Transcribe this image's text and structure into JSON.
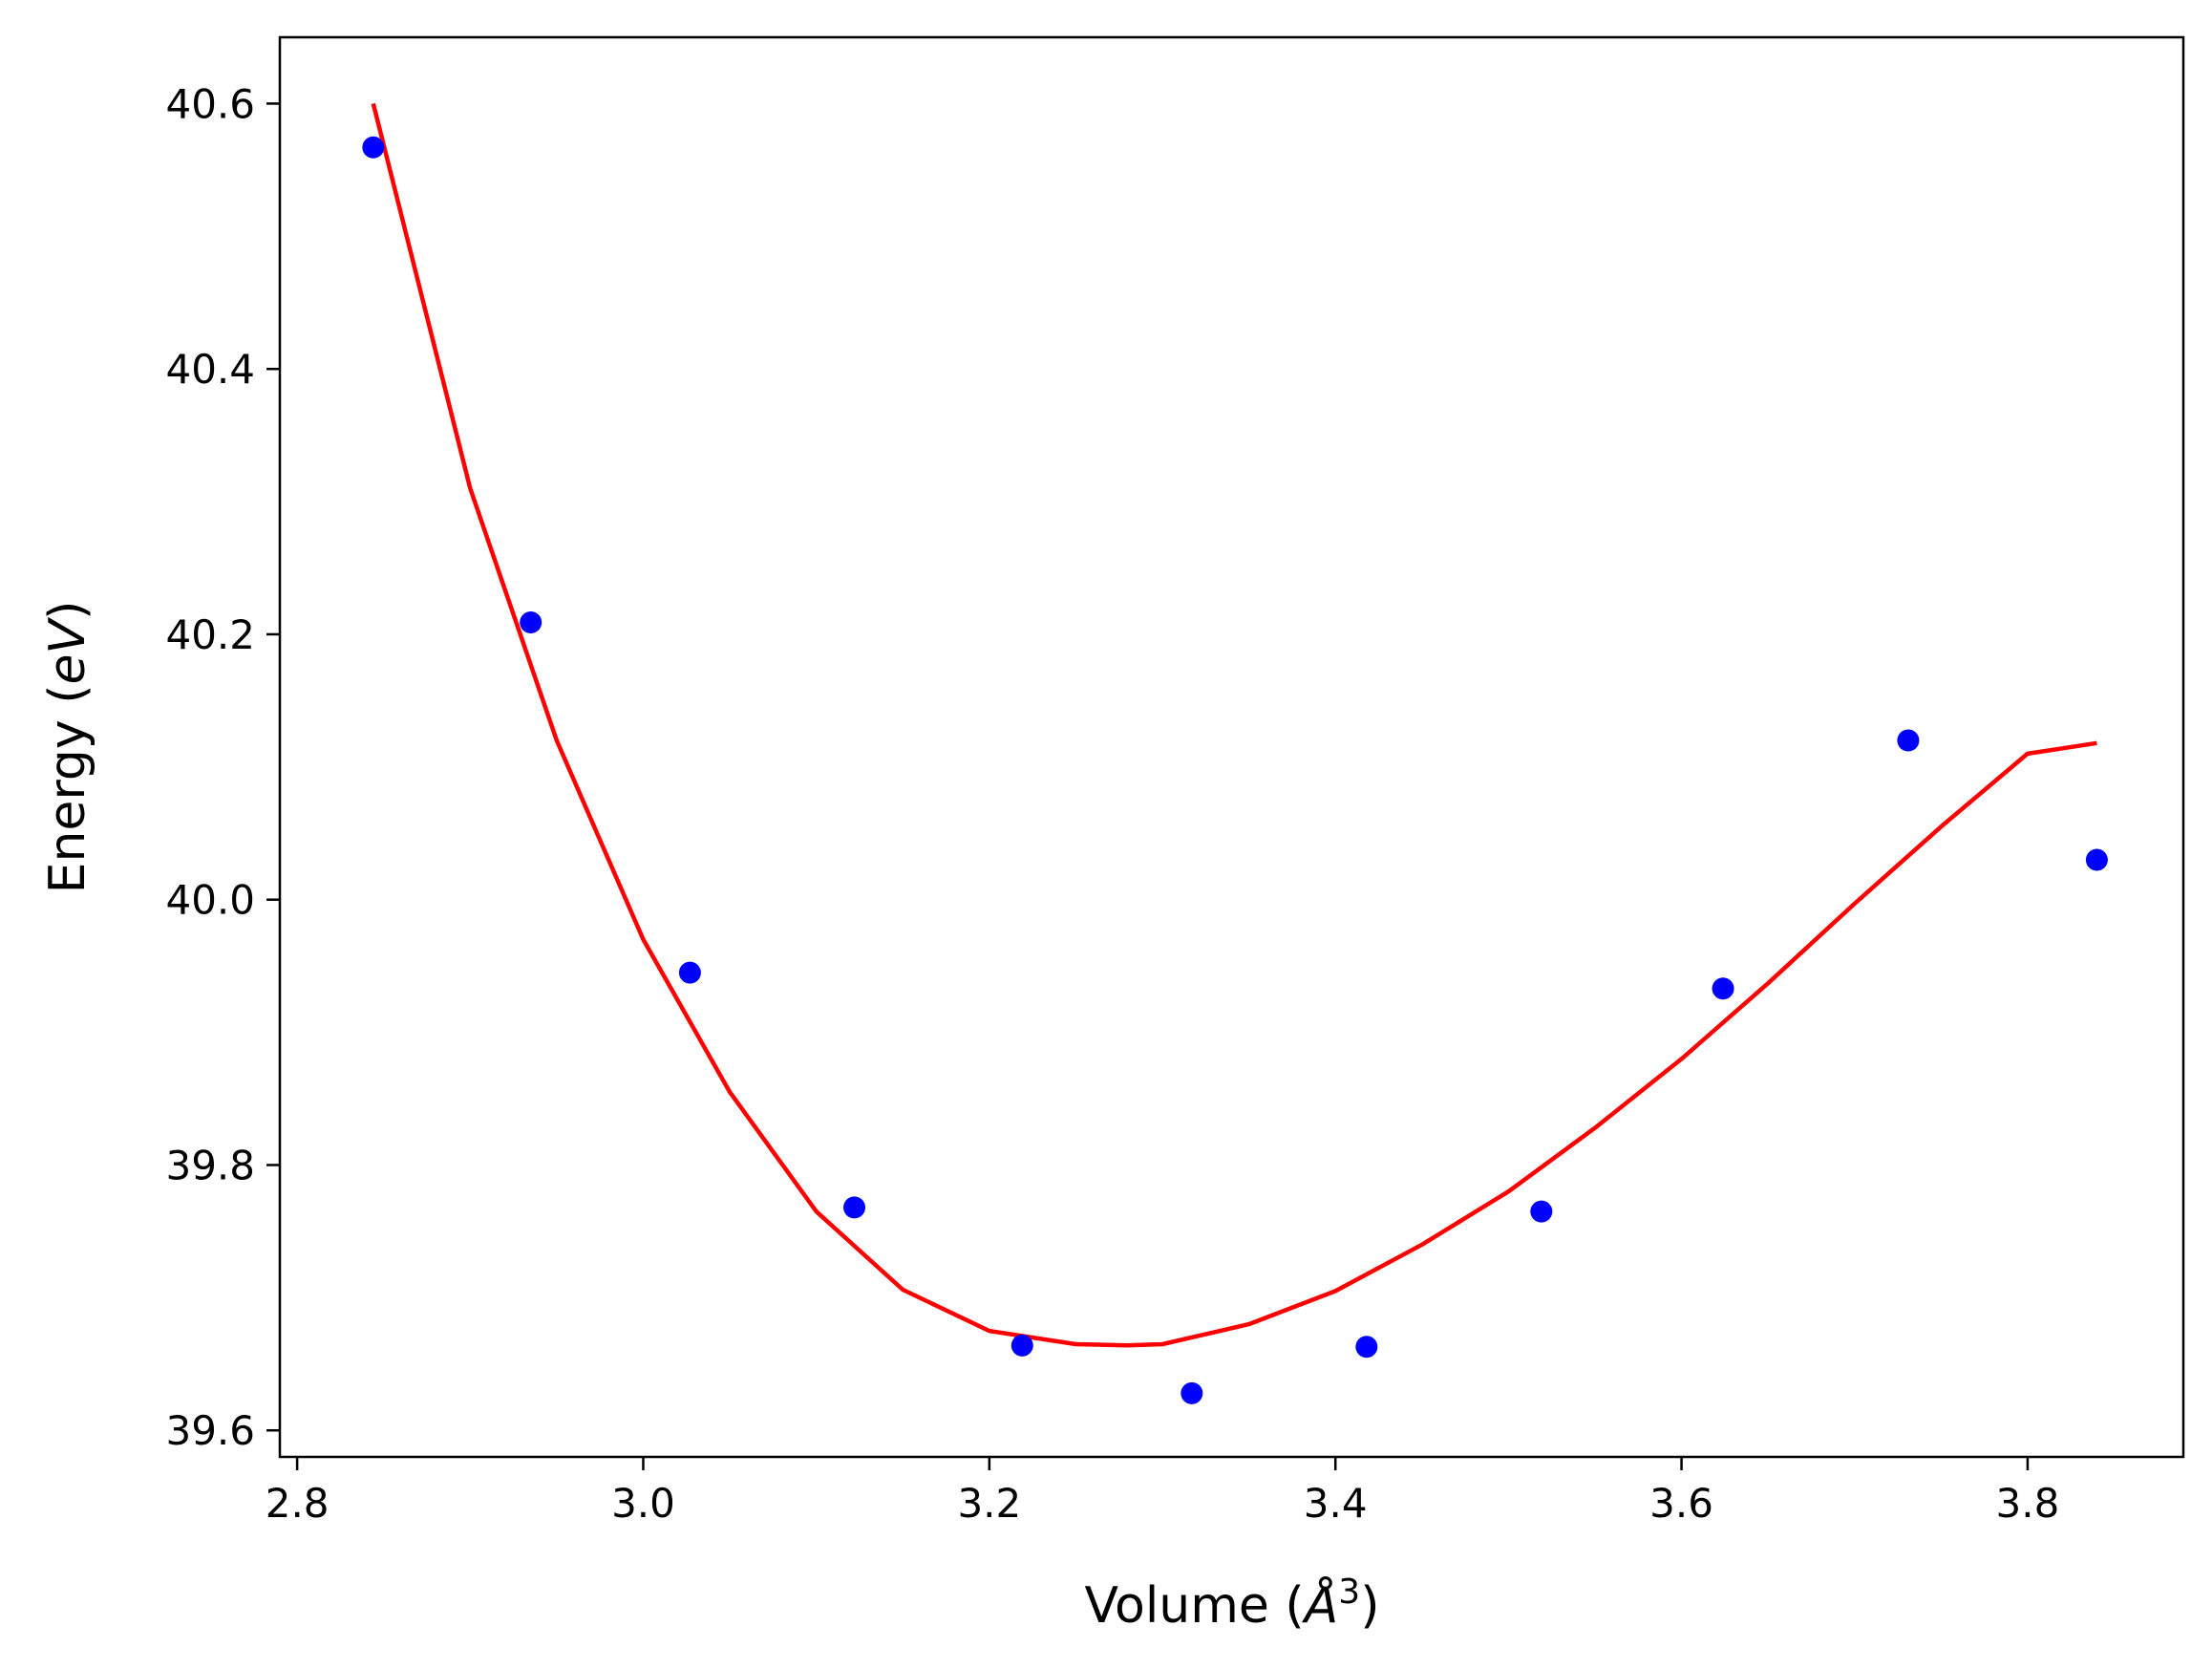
{
  "chart_data": {
    "type": "scatter",
    "title": "",
    "xlabel_text": "Volume (",
    "xlabel_unit": "Å",
    "xlabel_exp": "3",
    "xlabel_close": ")",
    "ylabel_text": "Energy (",
    "ylabel_unit": "eV",
    "ylabel_close": ")",
    "xlim": [
      2.79,
      3.89
    ],
    "ylim": [
      39.58,
      40.65
    ],
    "xticks": [
      {
        "value": 2.8,
        "label": "2.8"
      },
      {
        "value": 3.0,
        "label": "3.0"
      },
      {
        "value": 3.2,
        "label": "3.2"
      },
      {
        "value": 3.4,
        "label": "3.4"
      },
      {
        "value": 3.6,
        "label": "3.6"
      },
      {
        "value": 3.8,
        "label": "3.8"
      }
    ],
    "yticks": [
      {
        "value": 39.6,
        "label": "39.6"
      },
      {
        "value": 39.8,
        "label": "39.8"
      },
      {
        "value": 40.0,
        "label": "40.0"
      },
      {
        "value": 40.2,
        "label": "40.2"
      },
      {
        "value": 40.4,
        "label": "40.4"
      },
      {
        "value": 40.6,
        "label": "40.6"
      }
    ],
    "grid": false,
    "series": [
      {
        "kind": "scatter",
        "color": "#0000ff",
        "x": [
          2.844,
          2.935,
          3.027,
          3.122,
          3.219,
          3.317,
          3.418,
          3.519,
          3.624,
          3.731,
          3.84
        ],
        "y": [
          40.567,
          40.209,
          39.945,
          39.768,
          39.664,
          39.628,
          39.663,
          39.765,
          39.933,
          40.12,
          40.03
        ]
      },
      {
        "kind": "line",
        "color": "#ff0000",
        "x": [
          2.844,
          2.9,
          2.95,
          3.0,
          3.05,
          3.1,
          3.15,
          3.2,
          3.25,
          3.28,
          3.3,
          3.35,
          3.4,
          3.45,
          3.5,
          3.55,
          3.6,
          3.65,
          3.7,
          3.75,
          3.8,
          3.84
        ],
        "y": [
          40.6,
          40.31,
          40.12,
          39.97,
          39.855,
          39.765,
          39.706,
          39.675,
          39.665,
          39.664,
          39.665,
          39.68,
          39.705,
          39.74,
          39.78,
          39.828,
          39.88,
          39.937,
          39.997,
          40.055,
          40.11,
          40.118
        ]
      }
    ]
  }
}
